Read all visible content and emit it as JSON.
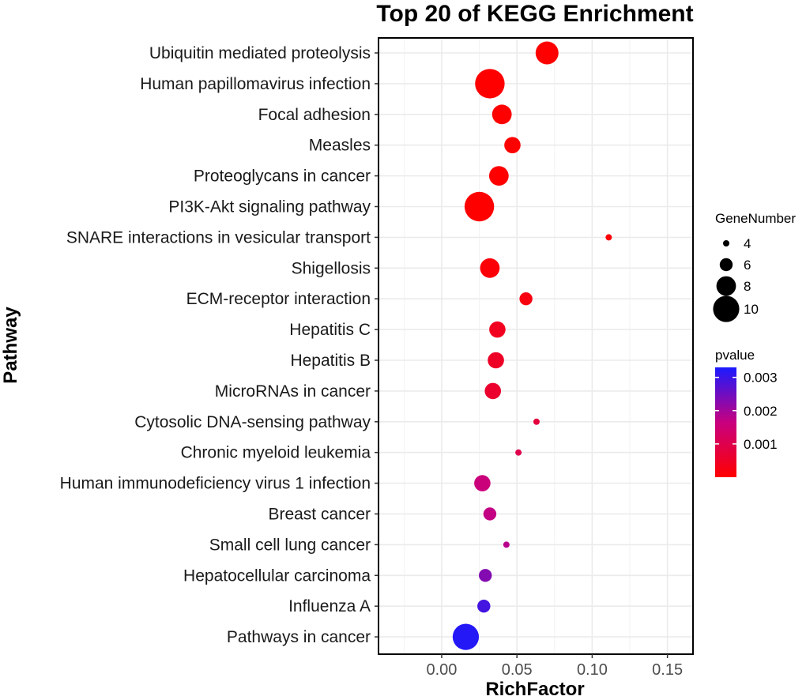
{
  "chart_data": {
    "type": "scatter",
    "title": "Top 20 of KEGG Enrichment",
    "xlabel": "RichFactor",
    "ylabel": "Pathway",
    "xlim": [
      -0.042,
      0.167
    ],
    "xticks": [
      0.0,
      0.05,
      0.1,
      0.15
    ],
    "xtick_labels": [
      "0.00",
      "0.05",
      "0.10",
      "0.15"
    ],
    "grid": true,
    "points": [
      {
        "pathway": "Ubiquitin mediated proteolysis",
        "rich_factor": 0.07,
        "gene_number": 9,
        "pvalue": 0.0
      },
      {
        "pathway": "Human papillomavirus infection",
        "rich_factor": 0.032,
        "gene_number": 11,
        "pvalue": 0.0
      },
      {
        "pathway": "Focal adhesion",
        "rich_factor": 0.04,
        "gene_number": 8,
        "pvalue": 0.0
      },
      {
        "pathway": "Measles",
        "rich_factor": 0.047,
        "gene_number": 7,
        "pvalue": 0.0
      },
      {
        "pathway": "Proteoglycans in cancer",
        "rich_factor": 0.038,
        "gene_number": 8,
        "pvalue": 0.0
      },
      {
        "pathway": "PI3K-Akt signaling pathway",
        "rich_factor": 0.025,
        "gene_number": 11,
        "pvalue": 0.0
      },
      {
        "pathway": "SNARE interactions in vesicular transport",
        "rich_factor": 0.111,
        "gene_number": 4,
        "pvalue": 0.0001
      },
      {
        "pathway": "Shigellosis",
        "rich_factor": 0.032,
        "gene_number": 8,
        "pvalue": 0.0001
      },
      {
        "pathway": "ECM-receptor interaction",
        "rich_factor": 0.056,
        "gene_number": 6,
        "pvalue": 0.0002
      },
      {
        "pathway": "Hepatitis C",
        "rich_factor": 0.037,
        "gene_number": 7,
        "pvalue": 0.0004
      },
      {
        "pathway": "Hepatitis B",
        "rich_factor": 0.036,
        "gene_number": 7,
        "pvalue": 0.0005
      },
      {
        "pathway": "MicroRNAs in cancer",
        "rich_factor": 0.034,
        "gene_number": 7,
        "pvalue": 0.0006
      },
      {
        "pathway": "Cytosolic DNA-sensing pathway",
        "rich_factor": 0.063,
        "gene_number": 4,
        "pvalue": 0.0008
      },
      {
        "pathway": "Chronic myeloid leukemia",
        "rich_factor": 0.051,
        "gene_number": 4,
        "pvalue": 0.001
      },
      {
        "pathway": "Human immunodeficiency virus 1 infection",
        "rich_factor": 0.027,
        "gene_number": 7,
        "pvalue": 0.0016
      },
      {
        "pathway": "Breast cancer",
        "rich_factor": 0.032,
        "gene_number": 6,
        "pvalue": 0.0017
      },
      {
        "pathway": "Small cell lung cancer",
        "rich_factor": 0.043,
        "gene_number": 4,
        "pvalue": 0.0018
      },
      {
        "pathway": "Hepatocellular carcinoma",
        "rich_factor": 0.029,
        "gene_number": 6,
        "pvalue": 0.0023
      },
      {
        "pathway": "Influenza A",
        "rich_factor": 0.028,
        "gene_number": 6,
        "pvalue": 0.0029
      },
      {
        "pathway": "Pathways in cancer",
        "rich_factor": 0.016,
        "gene_number": 10,
        "pvalue": 0.0032
      }
    ],
    "size_legend": {
      "title": "GeneNumber",
      "values": [
        4,
        6,
        8,
        10
      ],
      "labels": [
        "4",
        "6",
        "8",
        "10"
      ]
    },
    "color_legend": {
      "title": "pvalue",
      "range": [
        0.0,
        0.0033
      ],
      "ticks": [
        0.001,
        0.002,
        0.003
      ],
      "tick_labels": [
        "0.001",
        "0.002",
        "0.003"
      ],
      "low_color": "#ff0000",
      "high_color": "#0000ff"
    }
  }
}
